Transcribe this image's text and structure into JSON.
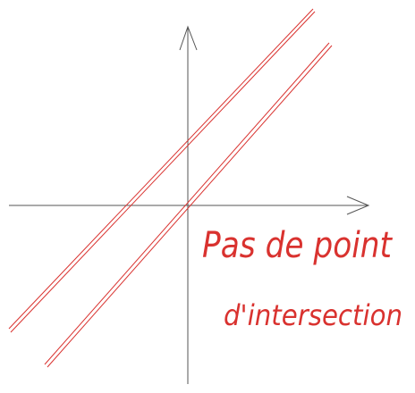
{
  "annotations": {
    "line1": "Pas de point",
    "line2": "d'intersection"
  }
}
